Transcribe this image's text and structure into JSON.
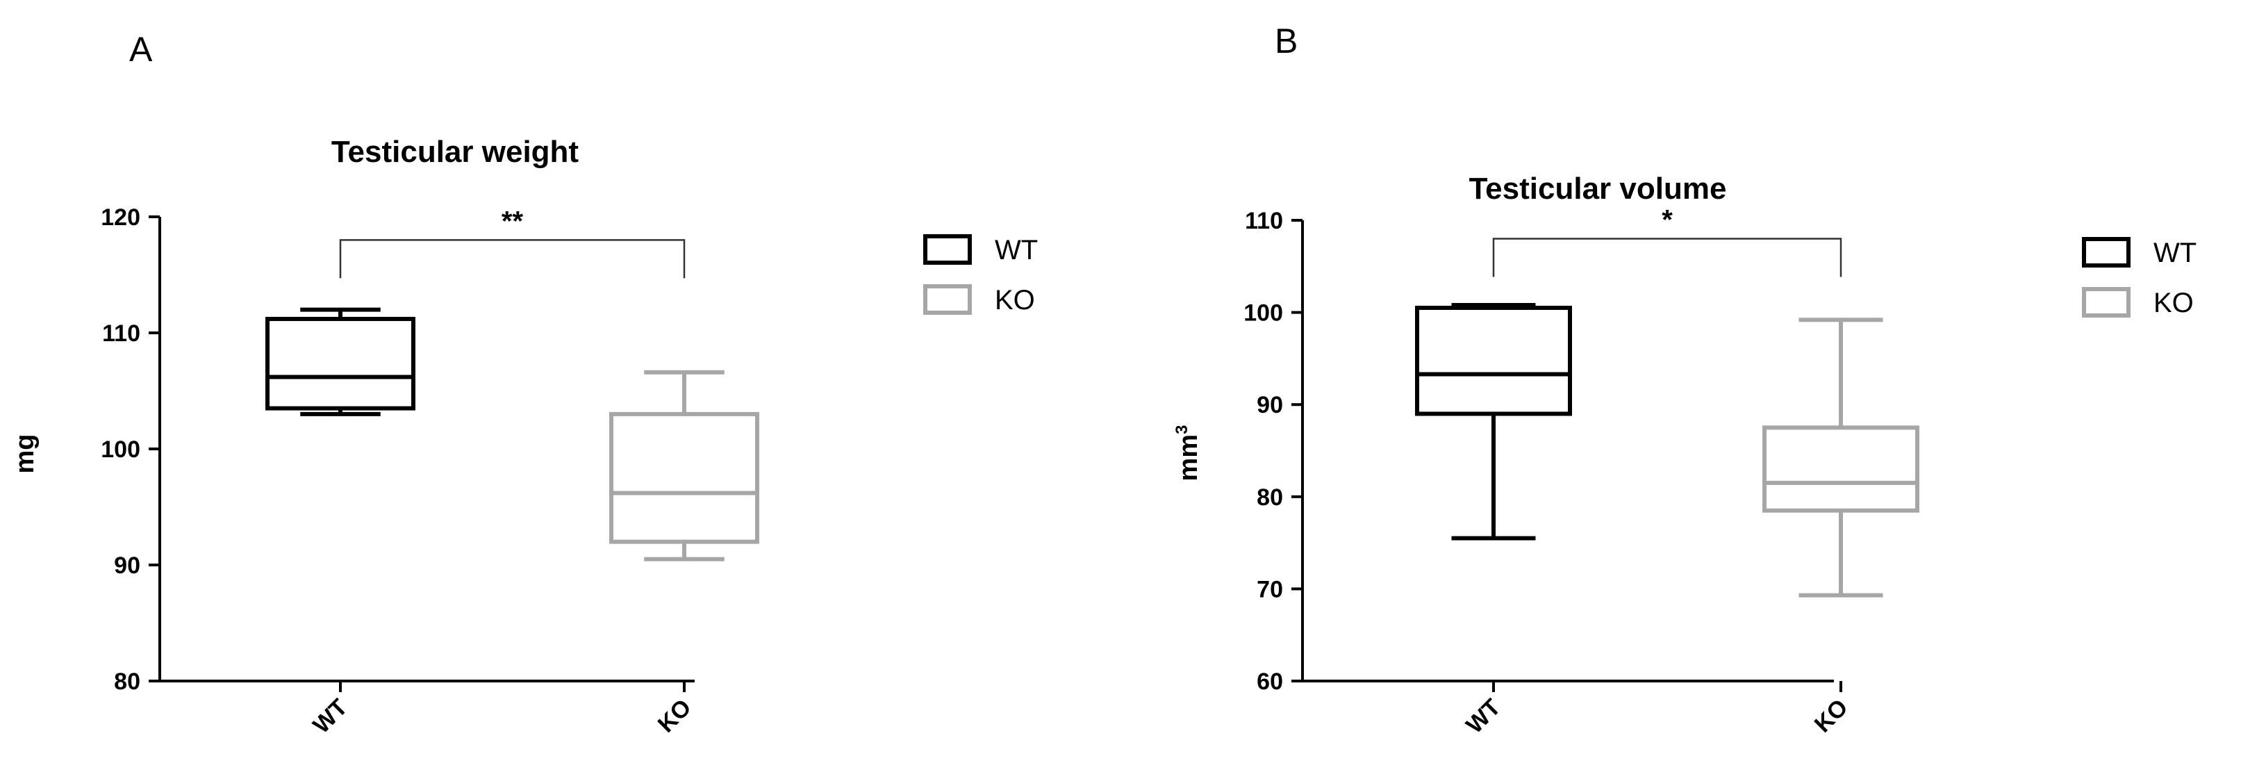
{
  "panel_labels": [
    "A",
    "B"
  ],
  "colors": {
    "WT": "#000000",
    "KO": "#a6a6a6",
    "axis": "#000000"
  },
  "chart_data": [
    {
      "type": "box",
      "panel": "A",
      "title": "Testicular weight",
      "ylabel": "mg",
      "ylabel_sup": "",
      "xlabel": "",
      "ylim": [
        80,
        120
      ],
      "yticks": [
        80,
        90,
        100,
        110,
        120
      ],
      "categories": [
        "WT",
        "KO"
      ],
      "boxes": [
        {
          "name": "WT",
          "min": 103,
          "q1": 103.5,
          "median": 106.2,
          "q3": 111.2,
          "max": 112
        },
        {
          "name": "KO",
          "min": 90.5,
          "q1": 92,
          "median": 96.2,
          "q3": 103,
          "max": 106.6
        }
      ],
      "significance": {
        "label": "**",
        "from": "WT",
        "to": "KO",
        "y": 118
      },
      "legend": [
        "WT",
        "KO"
      ],
      "legend_position": "top-right",
      "grid": false
    },
    {
      "type": "box",
      "panel": "B",
      "title": "Testicular volume",
      "ylabel": "mm",
      "ylabel_sup": "3",
      "xlabel": "",
      "ylim": [
        60,
        110
      ],
      "yticks": [
        60,
        70,
        80,
        90,
        100,
        110
      ],
      "categories": [
        "WT",
        "KO"
      ],
      "boxes": [
        {
          "name": "WT",
          "min": 75.5,
          "q1": 89,
          "median": 93.3,
          "q3": 100.5,
          "max": 100.8
        },
        {
          "name": "KO",
          "min": 69.3,
          "q1": 78.5,
          "median": 81.5,
          "q3": 87.5,
          "max": 99.2
        }
      ],
      "significance": {
        "label": "*",
        "from": "WT",
        "to": "KO",
        "y": 108
      },
      "legend": [
        "WT",
        "KO"
      ],
      "legend_position": "top-right",
      "grid": false
    }
  ]
}
